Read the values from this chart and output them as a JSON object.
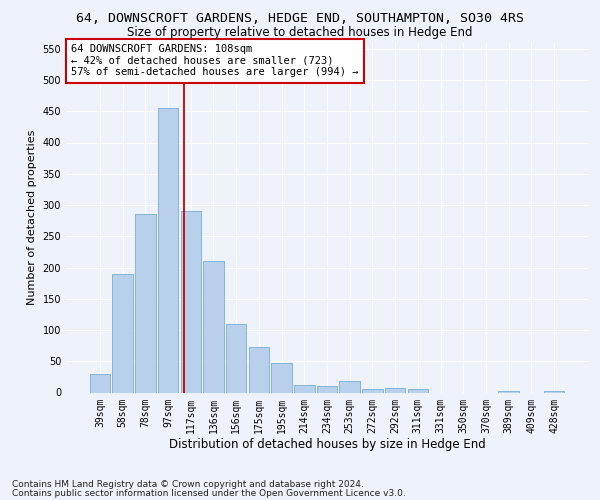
{
  "title1": "64, DOWNSCROFT GARDENS, HEDGE END, SOUTHAMPTON, SO30 4RS",
  "title2": "Size of property relative to detached houses in Hedge End",
  "xlabel": "Distribution of detached houses by size in Hedge End",
  "ylabel": "Number of detached properties",
  "categories": [
    "39sqm",
    "58sqm",
    "78sqm",
    "97sqm",
    "117sqm",
    "136sqm",
    "156sqm",
    "175sqm",
    "195sqm",
    "214sqm",
    "234sqm",
    "253sqm",
    "272sqm",
    "292sqm",
    "311sqm",
    "331sqm",
    "350sqm",
    "370sqm",
    "389sqm",
    "409sqm",
    "428sqm"
  ],
  "values": [
    30,
    190,
    285,
    455,
    290,
    210,
    110,
    73,
    47,
    12,
    10,
    18,
    5,
    7,
    5,
    0,
    0,
    0,
    3,
    0,
    2
  ],
  "bar_color": "#b8d0eb",
  "bar_edge_color": "#7aaed4",
  "vline_x_index": 3.72,
  "vline_color": "#cc0000",
  "annotation_text": "64 DOWNSCROFT GARDENS: 108sqm\n← 42% of detached houses are smaller (723)\n57% of semi-detached houses are larger (994) →",
  "annotation_box_color": "#ffffff",
  "annotation_box_edge": "#cc0000",
  "ylim": [
    0,
    560
  ],
  "yticks": [
    0,
    50,
    100,
    150,
    200,
    250,
    300,
    350,
    400,
    450,
    500,
    550
  ],
  "footnote1": "Contains HM Land Registry data © Crown copyright and database right 2024.",
  "footnote2": "Contains public sector information licensed under the Open Government Licence v3.0.",
  "bg_color": "#eef2fa",
  "grid_color": "#ffffff",
  "title1_fontsize": 9.5,
  "title2_fontsize": 8.5,
  "xlabel_fontsize": 8.5,
  "ylabel_fontsize": 8,
  "tick_fontsize": 7,
  "footnote_fontsize": 6.5,
  "annotation_fontsize": 7.5
}
